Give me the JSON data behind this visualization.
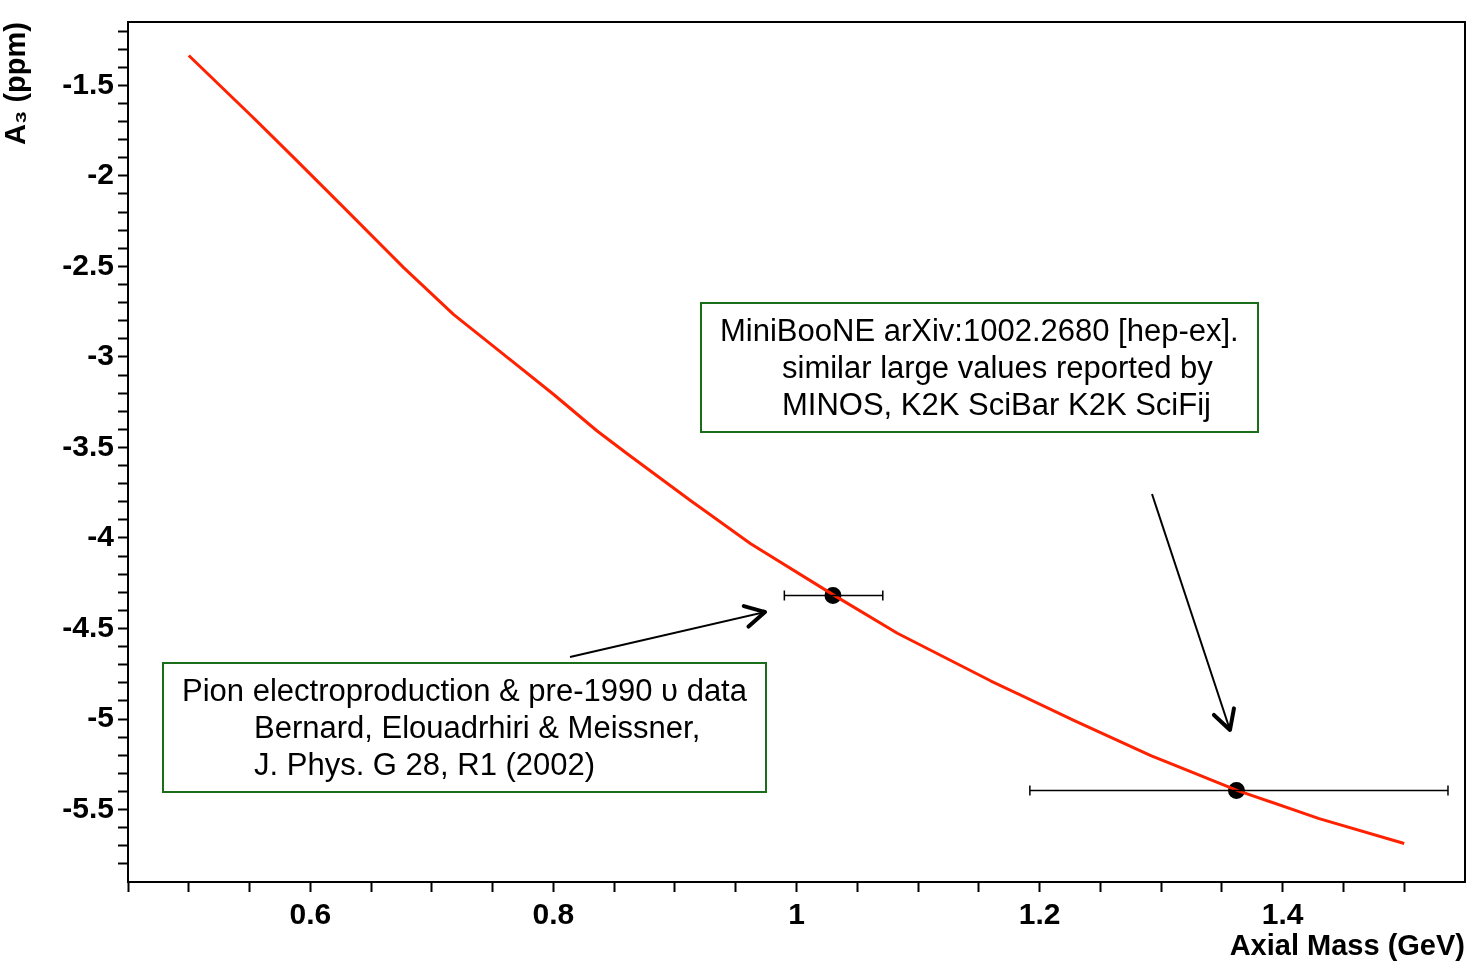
{
  "chart_data": {
    "type": "line",
    "xlabel": "Axial Mass (GeV)",
    "ylabel": "A₃ (ppm)",
    "xlim": [
      0.45,
      1.55
    ],
    "xticks": [
      {
        "value": 0.45,
        "label": null
      },
      {
        "value": 0.5,
        "label": null
      },
      {
        "value": 0.55,
        "label": null
      },
      0.6,
      {
        "value": 0.65,
        "label": null
      },
      {
        "value": 0.7,
        "label": null
      },
      {
        "value": 0.75,
        "label": null
      },
      0.8,
      {
        "value": 0.85,
        "label": null
      },
      {
        "value": 0.9,
        "label": null
      },
      {
        "value": 0.95,
        "label": null
      },
      1,
      {
        "value": 1.05,
        "label": null
      },
      {
        "value": 1.1,
        "label": null
      },
      {
        "value": 1.15,
        "label": null
      },
      1.2,
      {
        "value": 1.25,
        "label": null
      },
      {
        "value": 1.3,
        "label": null
      },
      {
        "value": 1.35,
        "label": null
      },
      1.4,
      {
        "value": 1.45,
        "label": null
      },
      {
        "value": 1.5,
        "label": null
      }
    ],
    "ylim": [
      -5.9,
      -1.15
    ],
    "yticks": [
      {
        "value": -5.8,
        "label": null
      },
      {
        "value": -5.7,
        "label": null
      },
      {
        "value": -5.6,
        "label": null
      },
      -5.5,
      {
        "value": -5.4,
        "label": null
      },
      {
        "value": -5.3,
        "label": null
      },
      {
        "value": -5.2,
        "label": null
      },
      {
        "value": -5.1,
        "label": null
      },
      -5,
      {
        "value": -4.9,
        "label": null
      },
      {
        "value": -4.8,
        "label": null
      },
      {
        "value": -4.7,
        "label": null
      },
      {
        "value": -4.6,
        "label": null
      },
      -4.5,
      {
        "value": -4.4,
        "label": null
      },
      {
        "value": -4.3,
        "label": null
      },
      {
        "value": -4.2,
        "label": null
      },
      {
        "value": -4.1,
        "label": null
      },
      -4,
      {
        "value": -3.9,
        "label": null
      },
      {
        "value": -3.8,
        "label": null
      },
      {
        "value": -3.7,
        "label": null
      },
      {
        "value": -3.6,
        "label": null
      },
      -3.5,
      {
        "value": -3.4,
        "label": null
      },
      {
        "value": -3.3,
        "label": null
      },
      {
        "value": -3.2,
        "label": null
      },
      {
        "value": -3.1,
        "label": null
      },
      -3,
      {
        "value": -2.9,
        "label": null
      },
      {
        "value": -2.8,
        "label": null
      },
      {
        "value": -2.7,
        "label": null
      },
      {
        "value": -2.6,
        "label": null
      },
      -2.5,
      {
        "value": -2.4,
        "label": null
      },
      {
        "value": -2.3,
        "label": null
      },
      {
        "value": -2.2,
        "label": null
      },
      {
        "value": -2.1,
        "label": null
      },
      -2,
      {
        "value": -1.9,
        "label": null
      },
      {
        "value": -1.8,
        "label": null
      },
      {
        "value": -1.7,
        "label": null
      },
      {
        "value": -1.6,
        "label": null
      },
      -1.5,
      {
        "value": -1.4,
        "label": null
      },
      {
        "value": -1.3,
        "label": null
      },
      {
        "value": -1.2,
        "label": null
      }
    ],
    "grid": false,
    "legend": false,
    "series": [
      {
        "color": "#ff2200",
        "marker": "none",
        "x": [
          0.5,
          0.551,
          0.587,
          0.628,
          0.677,
          0.718,
          0.759,
          0.8,
          0.836,
          0.861,
          0.913,
          0.962,
          1.031,
          1.083,
          1.16,
          1.229,
          1.292,
          1.363,
          1.43,
          1.5
        ],
        "values": [
          -1.335,
          -1.665,
          -1.903,
          -2.178,
          -2.508,
          -2.766,
          -2.986,
          -3.206,
          -3.409,
          -3.536,
          -3.794,
          -4.03,
          -4.317,
          -4.526,
          -4.79,
          -5.01,
          -5.203,
          -5.395,
          -5.55,
          -5.687
        ]
      },
      {
        "type": "scatter",
        "color": "#000000",
        "marker": "circle",
        "x": [
          1.03,
          1.362
        ],
        "values": [
          -4.317,
          -5.395
        ],
        "xerrors": [
          [
            0.99,
            1.071
          ],
          [
            1.192,
            1.536
          ]
        ]
      }
    ],
    "annotations": [
      "MiniBooNE    arXiv:1002.2680 [hep-ex].\nsimilar large values reported by\nMINOS, K2K SciBar  K2K SciFij",
      "Pion electroproduction & pre-1990 υ data\nBernard, Elouadrhiri & Meissner,\nJ. Phys. G 28, R1 (2002)"
    ]
  }
}
